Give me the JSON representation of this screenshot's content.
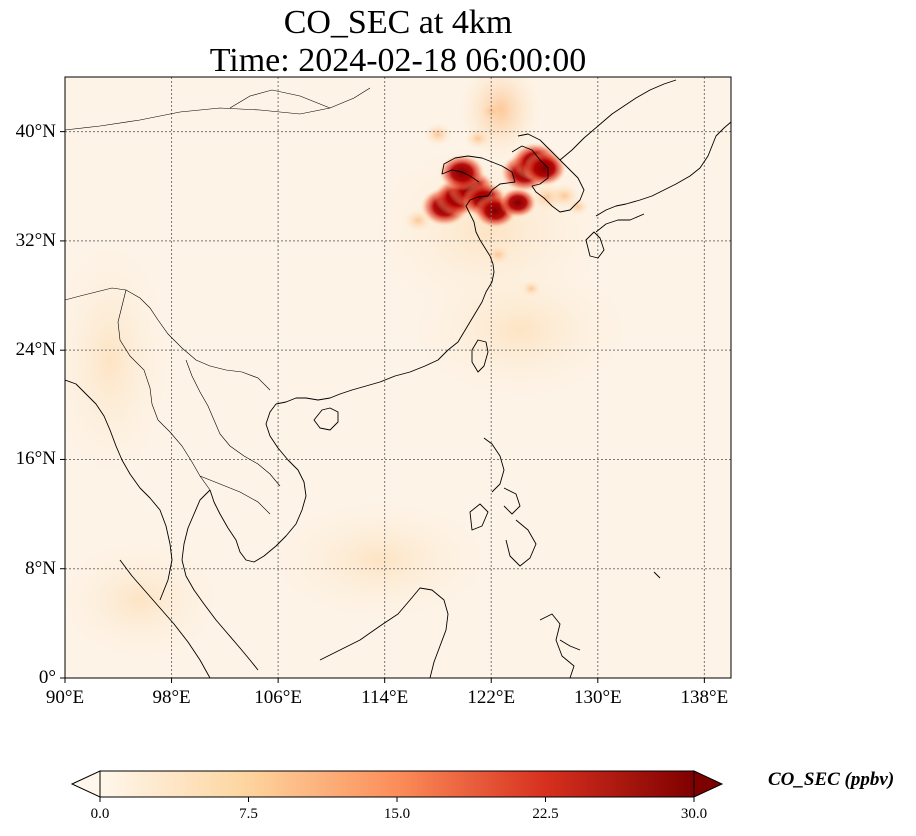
{
  "title_line1": "CO_SEC at 4km",
  "title_line2": "Time: 2024-02-18 06:00:00",
  "colorbar": {
    "label": "CO_SEC (ppbv)",
    "ticks": [
      "0.0",
      "7.5",
      "15.0",
      "22.5",
      "30.0"
    ],
    "min": 0,
    "max": 30,
    "extend": "both",
    "colormap": "OrRd",
    "colors": [
      "#fff7ec",
      "#fdd49e",
      "#fc8d59",
      "#d7301f",
      "#7f0000"
    ]
  },
  "map": {
    "projection": "PlateCarree",
    "lon_range": [
      90,
      140
    ],
    "lat_range": [
      0,
      44
    ],
    "gridlines": "dotted",
    "lat_ticks": [
      {
        "value": 40,
        "label": "40°N"
      },
      {
        "value": 32,
        "label": "32°N"
      },
      {
        "value": 24,
        "label": "24°N"
      },
      {
        "value": 16,
        "label": "16°N"
      },
      {
        "value": 8,
        "label": "8°N"
      },
      {
        "value": 0,
        "label": "0°"
      }
    ],
    "lon_ticks": [
      {
        "value": 90,
        "label": "90°E"
      },
      {
        "value": 98,
        "label": "98°E"
      },
      {
        "value": 106,
        "label": "106°E"
      },
      {
        "value": 114,
        "label": "114°E"
      },
      {
        "value": 122,
        "label": "122°E"
      },
      {
        "value": 130,
        "label": "130°E"
      },
      {
        "value": 138,
        "label": "138°E"
      }
    ],
    "hotspots": [
      {
        "lon": 118.5,
        "lat": 34.5,
        "value": 30
      },
      {
        "lon": 119.5,
        "lat": 35.2,
        "value": 30
      },
      {
        "lon": 120.5,
        "lat": 35.8,
        "value": 30
      },
      {
        "lon": 121.5,
        "lat": 35.0,
        "value": 27
      },
      {
        "lon": 122.3,
        "lat": 34.2,
        "value": 25
      },
      {
        "lon": 119.8,
        "lat": 37.0,
        "value": 28
      },
      {
        "lon": 124.5,
        "lat": 37.0,
        "value": 30
      },
      {
        "lon": 125.3,
        "lat": 37.8,
        "value": 30
      },
      {
        "lon": 126.0,
        "lat": 37.3,
        "value": 26
      },
      {
        "lon": 124.0,
        "lat": 34.8,
        "value": 20
      },
      {
        "lon": 126.2,
        "lat": 35.2,
        "value": 18
      },
      {
        "lon": 127.5,
        "lat": 35.3,
        "value": 14
      },
      {
        "lon": 116.5,
        "lat": 33.5,
        "value": 12
      },
      {
        "lon": 121.0,
        "lat": 39.5,
        "value": 10
      },
      {
        "lon": 118.0,
        "lat": 39.8,
        "value": 12
      },
      {
        "lon": 122.0,
        "lat": 41.5,
        "value": 6
      },
      {
        "lon": 122.5,
        "lat": 31.0,
        "value": 8
      },
      {
        "lon": 125.0,
        "lat": 28.5,
        "value": 4
      },
      {
        "lon": 128.5,
        "lat": 34.5,
        "value": 6
      }
    ]
  }
}
